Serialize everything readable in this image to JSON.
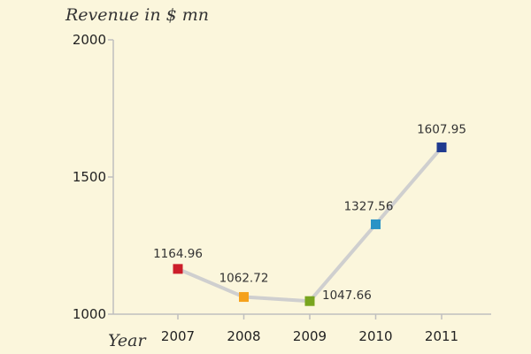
{
  "chart_data": {
    "type": "line",
    "ylabel": "Revenue in $ mn",
    "xlabel": "Year",
    "categories": [
      "2007",
      "2008",
      "2009",
      "2010",
      "2011"
    ],
    "values": [
      1164.96,
      1062.72,
      1047.66,
      1327.56,
      1607.95
    ],
    "data_labels": [
      "1164.96",
      "1062.72",
      "1047.66",
      "1327.56",
      "1607.95"
    ],
    "point_colors": [
      "#cc1e2a",
      "#f5a11c",
      "#78a51f",
      "#2a93c6",
      "#1f3a8f"
    ],
    "line_color": "#cfcfcf",
    "ylim": [
      1000,
      2000
    ],
    "yticks": [
      "1000",
      "1500",
      "2000"
    ],
    "grid": false
  }
}
